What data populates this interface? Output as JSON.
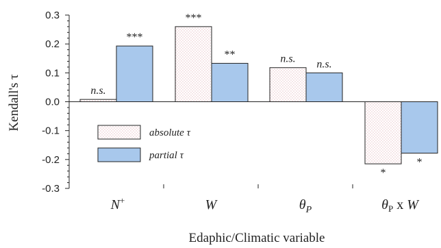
{
  "chart_data": {
    "type": "bar",
    "xlabel": "Edaphic/Climatic variable",
    "ylabel": "Kendall's τ",
    "ylim": [
      -0.3,
      0.3
    ],
    "yticks": [
      "0.3",
      "0.2",
      "0.1",
      "0.0",
      "-0.1",
      "-0.2",
      "-0.3"
    ],
    "categories": [
      "N⁺",
      "W",
      "θP",
      "θP x W"
    ],
    "series": [
      {
        "name": "absolute τ",
        "values": [
          0.008,
          0.26,
          0.118,
          -0.215
        ],
        "significance": [
          "n.s.",
          "***",
          "n.s.",
          "*"
        ],
        "color": "#ffffff",
        "pattern": "dotted-pink"
      },
      {
        "name": "partial τ",
        "values": [
          0.193,
          0.133,
          0.1,
          -0.178
        ],
        "significance": [
          "***",
          "**",
          "n.s.",
          "*"
        ],
        "color": "#a8c8ec"
      }
    ],
    "legend": "lower-left",
    "grid": false
  }
}
